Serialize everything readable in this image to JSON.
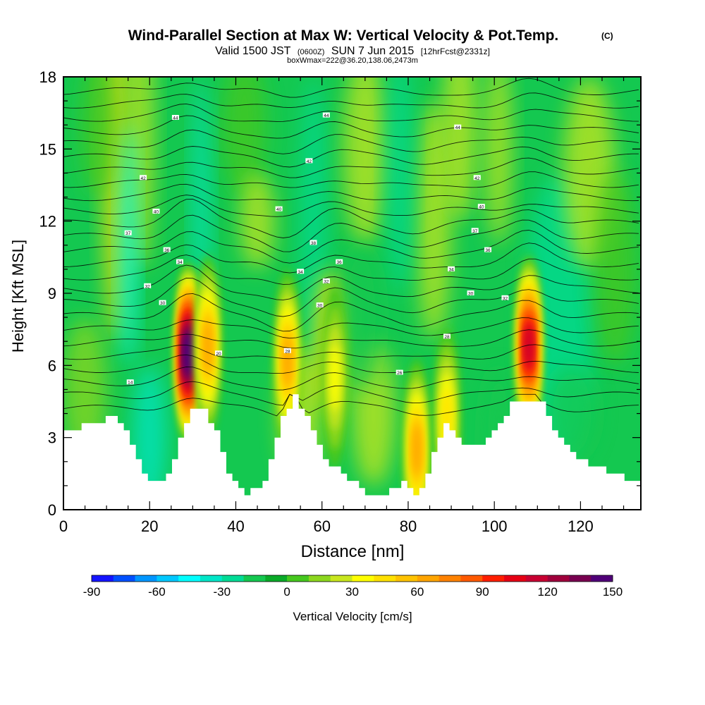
{
  "chart_data": {
    "type": "heatmap",
    "title": "Wind-Parallel Section at Max W: Vertical Velocity & Pot.Temp.",
    "title_mark": "(C)",
    "subtitle": {
      "valid": "Valid 1500 JST",
      "utc": "(0600Z)",
      "date": "SUN 7 Jun 2015",
      "forecast": "[12hrFcst@2331z]"
    },
    "box_info": "boxWmax=222@36.20,138.06,2473m",
    "xlabel": "Distance [nm]",
    "ylabel": "Height [Kft MSL]",
    "xlim": [
      0,
      134
    ],
    "ylim": [
      0,
      18
    ],
    "x_ticks": [
      0,
      20,
      40,
      60,
      80,
      100,
      120
    ],
    "y_ticks": [
      0,
      3,
      6,
      9,
      12,
      15,
      18
    ],
    "colorbar": {
      "label": "Vertical Velocity [cm/s]",
      "ticks": [
        -90,
        -60,
        -30,
        0,
        30,
        60,
        90,
        120,
        150
      ],
      "min": -90,
      "max": 150,
      "step": 10,
      "colors": [
        "#1414ff",
        "#0050ff",
        "#0096ff",
        "#00c8ff",
        "#00ffff",
        "#00e6c8",
        "#00dc96",
        "#14c850",
        "#0aaa28",
        "#46c81e",
        "#8cd71e",
        "#c8e61e",
        "#ffff00",
        "#ffe100",
        "#ffc300",
        "#ffa500",
        "#ff8200",
        "#ff5a00",
        "#ff1e00",
        "#e60014",
        "#c80032",
        "#a0003c",
        "#780050",
        "#500078"
      ]
    },
    "terrain": {
      "x": [
        0,
        12,
        15,
        17,
        20,
        24,
        29,
        32,
        35,
        38,
        42,
        46,
        50,
        53,
        57,
        60,
        64,
        68,
        72,
        76,
        79,
        81,
        84,
        88,
        92,
        96,
        100,
        104,
        110,
        114,
        120,
        126,
        130,
        134
      ],
      "height": [
        3.3,
        3.9,
        3.0,
        2.0,
        1.0,
        1.4,
        4.3,
        4.3,
        3.2,
        1.3,
        0.7,
        1.2,
        3.6,
        4.8,
        3.5,
        2.0,
        1.6,
        1.0,
        0.4,
        0.8,
        1.4,
        0.4,
        1.5,
        3.7,
        2.6,
        2.6,
        3.3,
        4.6,
        4.6,
        3.2,
        2.0,
        1.6,
        1.3,
        1.3
      ]
    },
    "updrafts": [
      {
        "x": 29,
        "z": 6.5,
        "w": 150
      },
      {
        "x": 33.5,
        "z": 6.8,
        "w": 60
      },
      {
        "x": 52,
        "z": 6.2,
        "w": 60
      },
      {
        "x": 108,
        "z": 6.8,
        "w": 110
      },
      {
        "x": 82,
        "z": 2.5,
        "w": 60
      },
      {
        "x": 63,
        "z": 5.5,
        "w": 30
      },
      {
        "x": 89,
        "z": 3.8,
        "w": 40
      }
    ],
    "theta_labels": [
      {
        "x": 15.5,
        "z": 5.3,
        "text": "14"
      },
      {
        "x": 23,
        "z": 8.6,
        "text": "30"
      },
      {
        "x": 19.5,
        "z": 9.3,
        "text": "32"
      },
      {
        "x": 27,
        "z": 10.3,
        "text": "34"
      },
      {
        "x": 24,
        "z": 10.8,
        "text": "36"
      },
      {
        "x": 15,
        "z": 11.5,
        "text": "37"
      },
      {
        "x": 21.5,
        "z": 12.4,
        "text": "40"
      },
      {
        "x": 18.5,
        "z": 13.8,
        "text": "42"
      },
      {
        "x": 26,
        "z": 16.3,
        "text": "44"
      },
      {
        "x": 36,
        "z": 6.5,
        "text": "20"
      },
      {
        "x": 52,
        "z": 6.6,
        "text": "28"
      },
      {
        "x": 59.5,
        "z": 8.5,
        "text": "30"
      },
      {
        "x": 61,
        "z": 9.5,
        "text": "32"
      },
      {
        "x": 55,
        "z": 9.9,
        "text": "34"
      },
      {
        "x": 64,
        "z": 10.3,
        "text": "36"
      },
      {
        "x": 58,
        "z": 11.1,
        "text": "38"
      },
      {
        "x": 50,
        "z": 12.5,
        "text": "40"
      },
      {
        "x": 57,
        "z": 14.5,
        "text": "42"
      },
      {
        "x": 61,
        "z": 16.4,
        "text": "44"
      },
      {
        "x": 78,
        "z": 5.7,
        "text": "26"
      },
      {
        "x": 89,
        "z": 7.2,
        "text": "28"
      },
      {
        "x": 94.5,
        "z": 9.0,
        "text": "30"
      },
      {
        "x": 102.5,
        "z": 8.8,
        "text": "32"
      },
      {
        "x": 90,
        "z": 10.0,
        "text": "34"
      },
      {
        "x": 98.5,
        "z": 10.8,
        "text": "36"
      },
      {
        "x": 95.5,
        "z": 11.6,
        "text": "37"
      },
      {
        "x": 97,
        "z": 12.6,
        "text": "40"
      },
      {
        "x": 96,
        "z": 13.8,
        "text": "42"
      },
      {
        "x": 91.5,
        "z": 15.9,
        "text": "44"
      }
    ]
  }
}
